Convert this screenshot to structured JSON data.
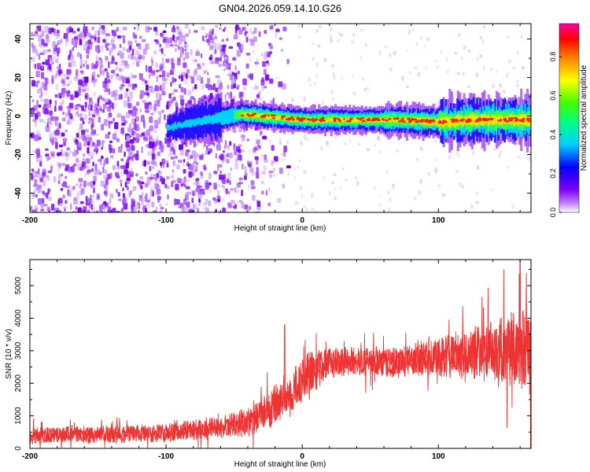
{
  "chart_data": [
    {
      "type": "heatmap",
      "title": "GN04.2026.059.14.10.G26",
      "xlabel": "Height of straight line (km)",
      "ylabel": "Frequency (Hz)",
      "xlim": [
        -200,
        168
      ],
      "ylim": [
        -50,
        48
      ],
      "xticks": [
        -200,
        -100,
        0,
        100
      ],
      "xtick_labels": [
        "-200",
        "-100",
        "0",
        "100"
      ],
      "yticks": [
        -40,
        -20,
        0,
        20,
        40
      ],
      "ytick_labels": [
        "-40",
        "-20",
        "0",
        "20",
        "40"
      ],
      "colorbar": {
        "label": "Normalized spectral amplitude",
        "range": [
          0.0,
          0.97
        ],
        "ticks": [
          0.0,
          0.2,
          0.4,
          0.6,
          0.8
        ],
        "tick_labels": [
          "0.0",
          "0.2",
          "0.4",
          "0.6",
          "0.8"
        ],
        "colormap": "rainbow",
        "stops": [
          "#ffffff",
          "#8000ff",
          "#0000ff",
          "#00ffff",
          "#00ff00",
          "#ffff00",
          "#ff0000",
          "#ff00aa"
        ]
      },
      "description_features": {
        "noise_region_x": [
          -200,
          -40
        ],
        "ridge_points": [
          {
            "x": -100,
            "freq": -6
          },
          {
            "x": -70,
            "freq": -2
          },
          {
            "x": -45,
            "freq": 1
          },
          {
            "x": -30,
            "freq": 0
          },
          {
            "x": 0,
            "freq": -2
          },
          {
            "x": 70,
            "freq": -2
          },
          {
            "x": 100,
            "freq": -3
          },
          {
            "x": 130,
            "freq": -2
          },
          {
            "x": 168,
            "freq": -2
          }
        ]
      }
    },
    {
      "type": "line",
      "xlabel": "Height of straight line (km)",
      "ylabel": "SNR (10 * v/v)",
      "xlim": [
        -200,
        168
      ],
      "ylim": [
        0,
        5800
      ],
      "xticks": [
        -200,
        -100,
        0,
        100
      ],
      "xtick_labels": [
        "-200",
        "-100",
        "0",
        "100"
      ],
      "yticks": [
        0,
        1000,
        2000,
        3000,
        4000,
        5000
      ],
      "ytick_labels": [
        "0",
        "1000",
        "2000",
        "3000",
        "4000",
        "5000"
      ],
      "series": [
        {
          "name": "SNR",
          "color": "#ee3333",
          "envelope_x": [
            -200,
            -150,
            -100,
            -60,
            -40,
            -25,
            -10,
            5,
            20,
            40,
            60,
            80,
            100,
            120,
            140,
            160,
            168
          ],
          "envelope_mean": [
            400,
            430,
            480,
            650,
            800,
            1200,
            1600,
            2300,
            2650,
            2700,
            2600,
            2700,
            2850,
            2900,
            2950,
            3000,
            3000
          ],
          "envelope_spread": [
            250,
            280,
            300,
            350,
            450,
            600,
            700,
            700,
            500,
            450,
            450,
            500,
            650,
            800,
            1000,
            1300,
            1500
          ],
          "peaks": [
            {
              "x": -13,
              "y": 3800
            },
            {
              "x": 148,
              "y": 5500
            },
            {
              "x": 160,
              "y": 5800
            }
          ]
        }
      ]
    }
  ]
}
